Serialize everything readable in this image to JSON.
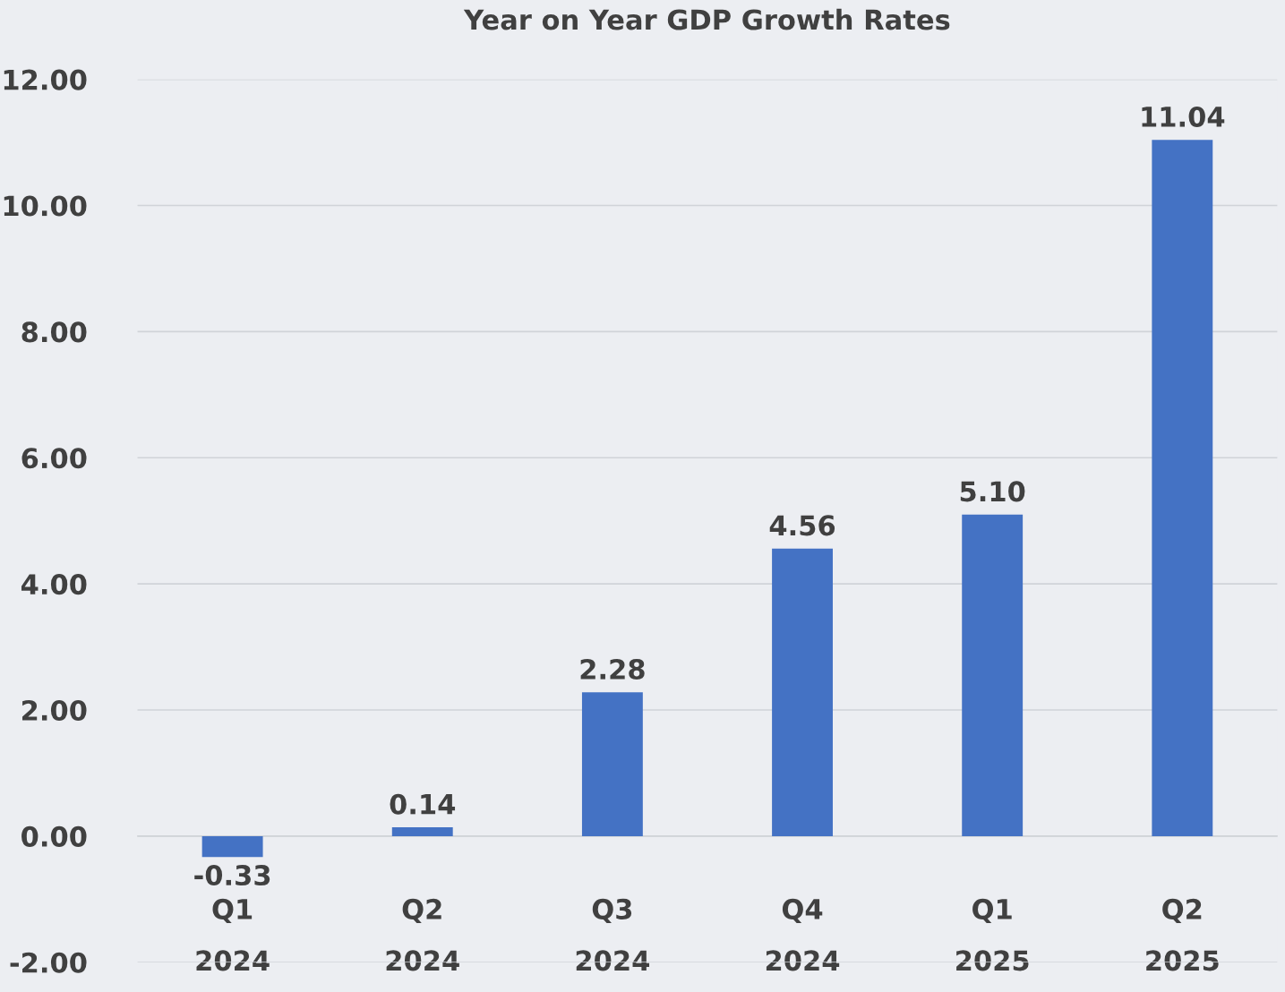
{
  "chart_data": {
    "type": "bar",
    "title": "Year on Year GDP Growth Rates",
    "categories": [
      "Q1\n2024",
      "Q2\n2024",
      "Q3\n2024",
      "Q4\n2024",
      "Q1\n2025",
      "Q2\n2025"
    ],
    "values": [
      -0.33,
      0.14,
      2.28,
      4.56,
      5.1,
      11.04
    ],
    "value_labels": [
      "-0.33",
      "0.14",
      "2.28",
      "4.56",
      "5.10",
      "11.04"
    ],
    "color": "#4472c4",
    "ylim": [
      -2,
      12
    ],
    "yticks": [
      {
        "value": -2,
        "label": "-2.00"
      },
      {
        "value": 0,
        "label": "0.00"
      },
      {
        "value": 2,
        "label": "2.00"
      },
      {
        "value": 4,
        "label": "4.00"
      },
      {
        "value": 6,
        "label": "6.00"
      },
      {
        "value": 8,
        "label": "8.00"
      },
      {
        "value": 10,
        "label": "10.00"
      },
      {
        "value": 12,
        "label": "12.00"
      }
    ],
    "grid": "y",
    "legend": false
  }
}
